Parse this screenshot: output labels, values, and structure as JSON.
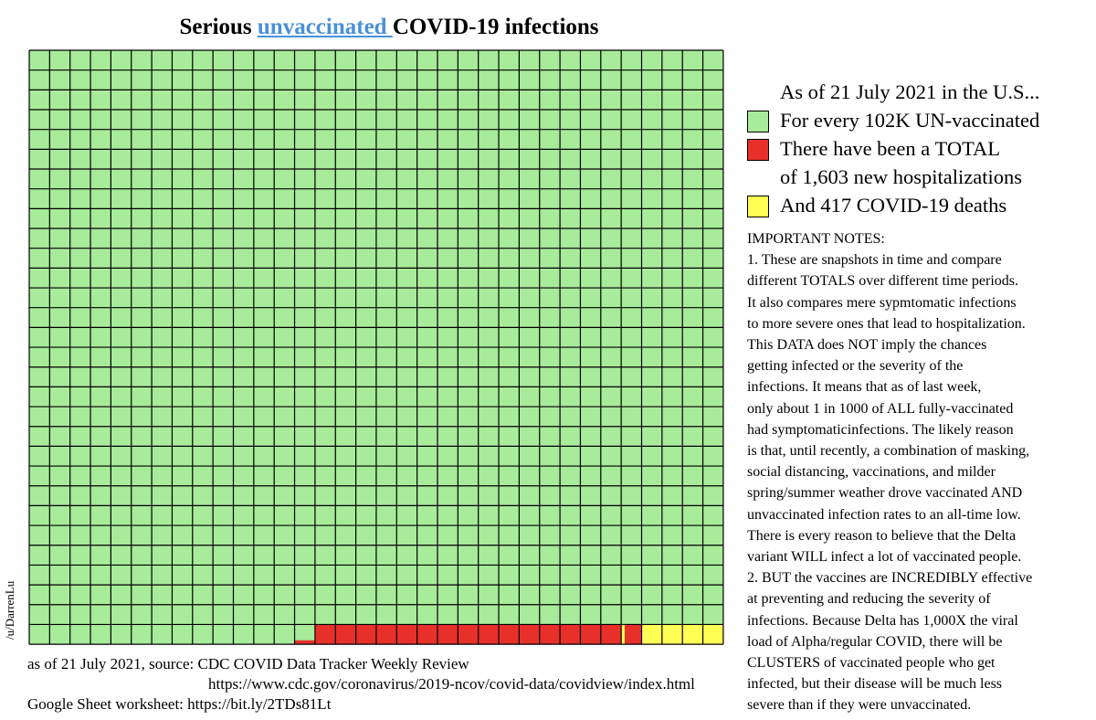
{
  "title": {
    "prefix": "Serious ",
    "highlight": "unvaccinated ",
    "suffix": "COVID-19 infections"
  },
  "watermark": "/u/DarrenLu",
  "source": {
    "line1": "as of 21 July 2021,  source: CDC COVID Data Tracker Weekly Review",
    "line2": "https://www.cdc.gov/coronavirus/2019-ncov/covid-data/covidview/index.html",
    "line3": "Google Sheet worksheet: https://bit.ly/2TDs81Lt"
  },
  "legend": {
    "header": "As of 21 July 2021 in the U.S...",
    "items": [
      {
        "label": "For every 102K UN-vaccinated",
        "color": "#a8eb9a"
      },
      {
        "label": "There have been a TOTAL",
        "color": "#e8302b"
      },
      {
        "label": "of 1,603 new hospitalizations",
        "color": ""
      },
      {
        "label": "And 417 COVID-19 deaths",
        "color": "#ffff55"
      }
    ]
  },
  "notes": [
    "IMPORTANT NOTES:",
    "1. These are snapshots in time and compare",
    "different TOTALS over different time periods.",
    "It also compares mere sypmtomatic infections",
    "to more severe ones that lead to hospitalization.",
    "This DATA does NOT imply the chances",
    "getting infected or the severity of the",
    "infections. It means that as of last week,",
    "only about 1 in 1000 of ALL fully-vaccinated",
    "had symptomaticinfections. The likely reason",
    "is that, until recently, a combination of masking,",
    "social distancing, vaccinations, and milder",
    "spring/summer weather drove vaccinated AND",
    "unvaccinated infection rates to an all-time low.",
    "There is every reason to believe that the Delta",
    "variant WILL infect a lot of vaccinated people.",
    "2. BUT the vaccines are INCREDIBLY effective",
    "at preventing and reducing the severity of",
    "infections. Because Delta has 1,000X the viral",
    "load of Alpha/regular COVID, there will be",
    "CLUSTERS of vaccinated people who get",
    "infected, but their disease will be much less",
    "severe than if they were unvaccinated."
  ],
  "chart_data": {
    "type": "waffle",
    "rows": 30,
    "cols": 34,
    "total": 102000,
    "units_per_cell": 100,
    "fill_order": "from bottom-right, right to left",
    "series": [
      {
        "name": "For every 102K UN-vaccinated",
        "value": 102000,
        "color": "#a8eb9a"
      },
      {
        "name": "of 1,603 new hospitalizations",
        "value": 1603,
        "color": "#e8302b"
      },
      {
        "name": "And 417 COVID-19 deaths",
        "value": 417,
        "color": "#ffff55"
      }
    ]
  }
}
